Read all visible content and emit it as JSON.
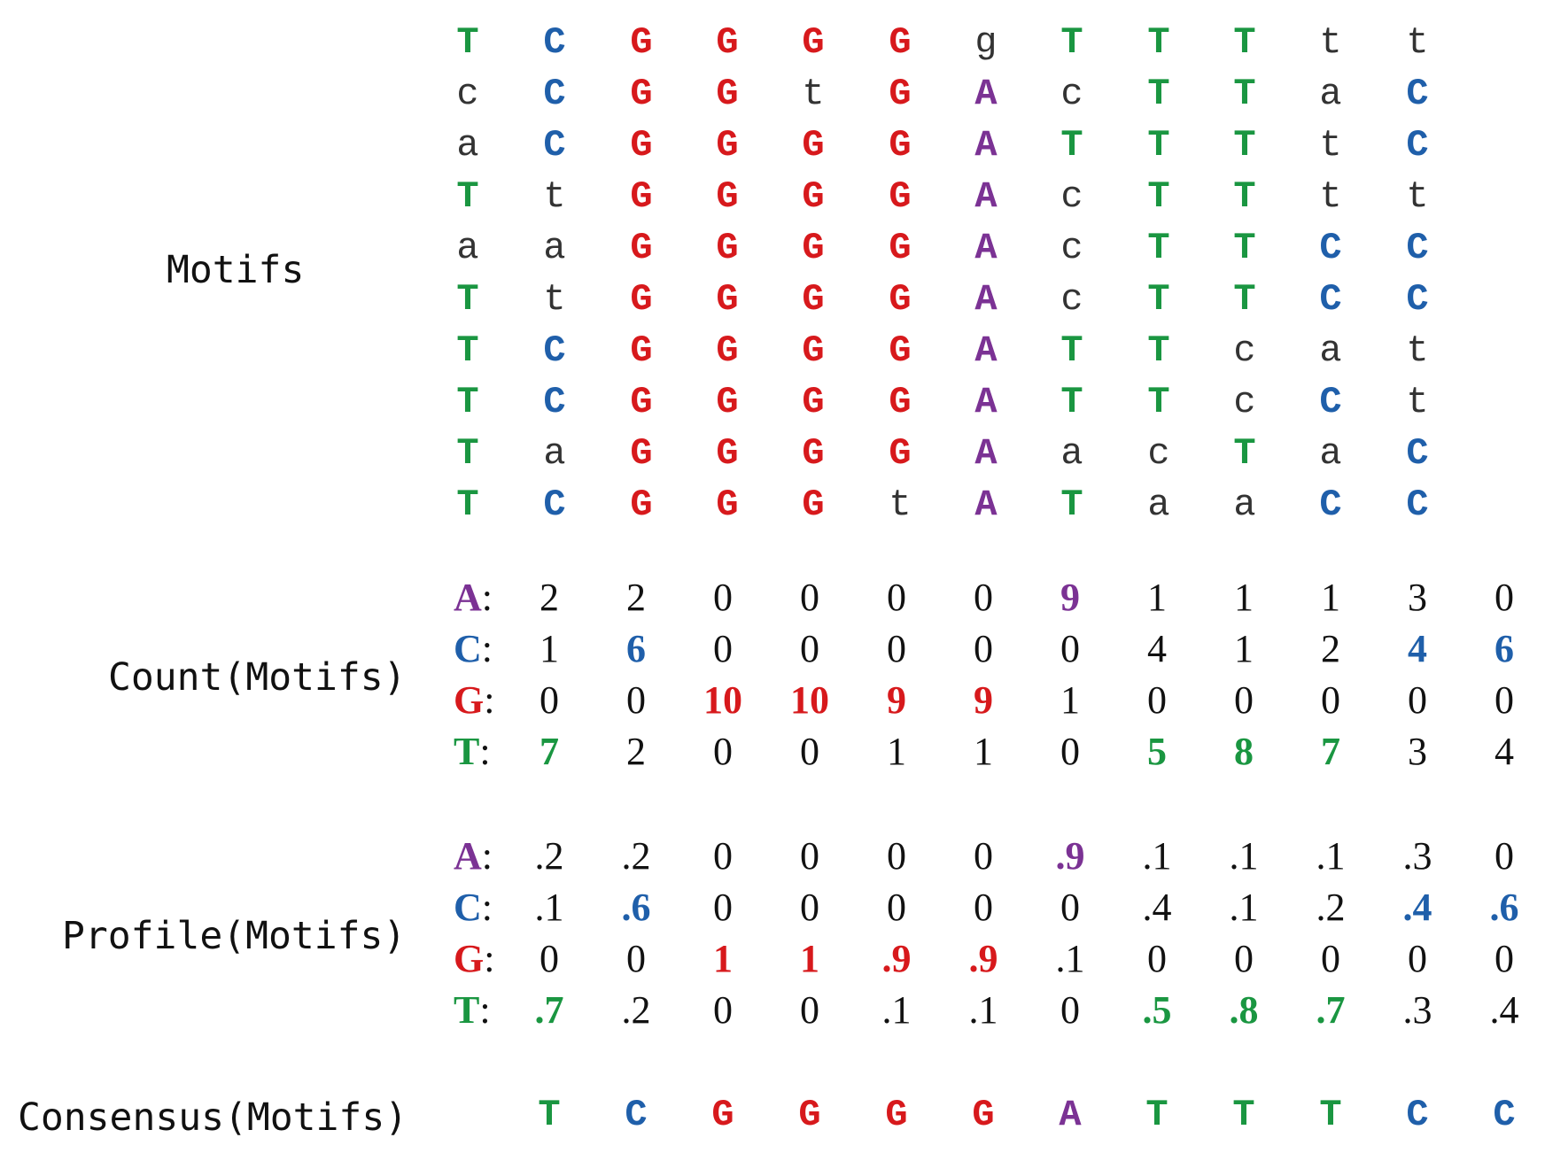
{
  "labels": {
    "motifs": "Motifs",
    "count": "Count(Motifs)",
    "profile": "Profile(Motifs)",
    "consensus": "Consensus(Motifs)"
  },
  "colors": {
    "A": "#7B3294",
    "C": "#1F5FAA",
    "G": "#D7191C",
    "T": "#1A9641",
    "plain": "#333333"
  },
  "motifs": [
    "TCGGGGgTTTtt",
    "cCGGtGAcTTaC",
    "aCGGGGATTTtC",
    "TtGGGGAcTTtt",
    "aaGGGGAcTTCC",
    "TtGGGGAcTTCC",
    "TCGGGGATTcat",
    "TCGGGGATTcCt",
    "TaGGGGAacTaC",
    "TCGGGtATaaCC"
  ],
  "count": {
    "rows": [
      {
        "key": "A",
        "values": [
          "2",
          "2",
          "0",
          "0",
          "0",
          "0",
          "9",
          "1",
          "1",
          "1",
          "3",
          "0"
        ]
      },
      {
        "key": "C",
        "values": [
          "1",
          "6",
          "0",
          "0",
          "0",
          "0",
          "0",
          "4",
          "1",
          "2",
          "4",
          "6"
        ]
      },
      {
        "key": "G",
        "values": [
          "0",
          "0",
          "10",
          "10",
          "9",
          "9",
          "1",
          "0",
          "0",
          "0",
          "0",
          "0"
        ]
      },
      {
        "key": "T",
        "values": [
          "7",
          "2",
          "0",
          "0",
          "1",
          "1",
          "0",
          "5",
          "8",
          "7",
          "3",
          "4"
        ]
      }
    ]
  },
  "profile": {
    "rows": [
      {
        "key": "A",
        "values": [
          ".2",
          ".2",
          "0",
          "0",
          "0",
          "0",
          ".9",
          ".1",
          ".1",
          ".1",
          ".3",
          "0"
        ]
      },
      {
        "key": "C",
        "values": [
          ".1",
          ".6",
          "0",
          "0",
          "0",
          "0",
          "0",
          ".4",
          ".1",
          ".2",
          ".4",
          ".6"
        ]
      },
      {
        "key": "G",
        "values": [
          "0",
          "0",
          "1",
          "1",
          ".9",
          ".9",
          ".1",
          "0",
          "0",
          "0",
          "0",
          "0"
        ]
      },
      {
        "key": "T",
        "values": [
          ".7",
          ".2",
          "0",
          "0",
          ".1",
          ".1",
          "0",
          ".5",
          ".8",
          ".7",
          ".3",
          ".4"
        ]
      }
    ]
  },
  "consensus": [
    "T",
    "C",
    "G",
    "G",
    "G",
    "G",
    "A",
    "T",
    "T",
    "T",
    "C",
    "C"
  ]
}
